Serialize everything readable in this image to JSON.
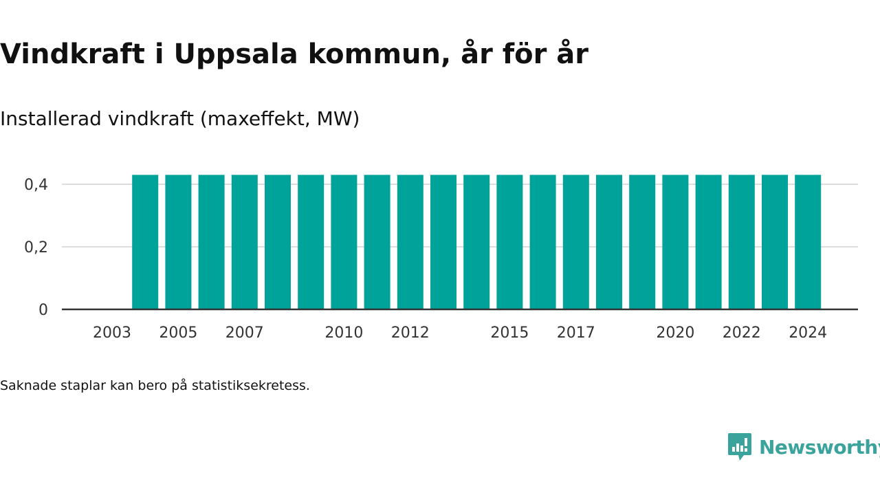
{
  "title": "Vindkraft i Uppsala kommun, år för år",
  "subtitle": "Installerad vindkraft (maxeffekt, MW)",
  "footnote": "Saknade staplar kan bero på statistiksekretess.",
  "brand": {
    "name": "Newsworthy",
    "icon": "newsworthy-logo-icon",
    "color": "#3aa39b"
  },
  "chart_data": {
    "type": "bar",
    "categories": [
      "2003",
      "2004",
      "2005",
      "2006",
      "2007",
      "2008",
      "2009",
      "2010",
      "2011",
      "2012",
      "2013",
      "2014",
      "2015",
      "2016",
      "2017",
      "2018",
      "2019",
      "2020",
      "2021",
      "2022",
      "2023",
      "2024"
    ],
    "values": [
      null,
      0.43,
      0.43,
      0.43,
      0.43,
      0.43,
      0.43,
      0.43,
      0.43,
      0.43,
      0.43,
      0.43,
      0.43,
      0.43,
      0.43,
      0.43,
      0.43,
      0.43,
      0.43,
      0.43,
      0.43,
      0.43
    ],
    "x_tick_labels": [
      "2003",
      "2005",
      "2007",
      "2010",
      "2012",
      "2015",
      "2017",
      "2020",
      "2022",
      "2024"
    ],
    "y_ticks": [
      0,
      0.2,
      0.4
    ],
    "y_tick_labels": [
      "0",
      "0,2",
      "0,4"
    ],
    "ylim": [
      0,
      0.43
    ],
    "xlabel": "",
    "ylabel": "",
    "grid": true,
    "bar_color": "#00a39a",
    "grid_color": "#dddddd",
    "axis_color": "#333333"
  }
}
